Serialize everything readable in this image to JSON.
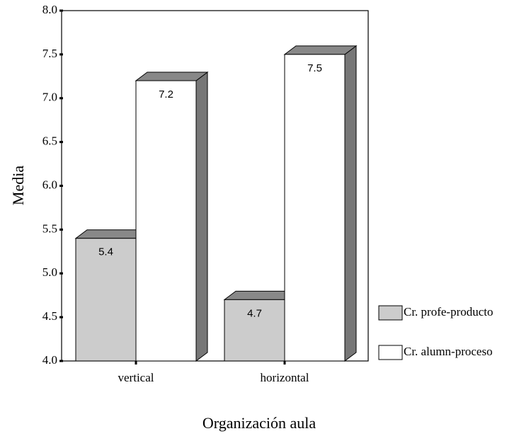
{
  "chart_data": {
    "type": "bar3d",
    "x_label": "Organización aula",
    "y_label": "Media",
    "categories": [
      "vertical",
      "horizontal"
    ],
    "series": [
      {
        "name": "Cr. profe-producto",
        "color": "#cccccc",
        "values": [
          5.4,
          4.7
        ]
      },
      {
        "name": "Cr. alumn-proceso",
        "color": "#ffffff",
        "values": [
          7.2,
          7.5
        ]
      }
    ],
    "ylim": [
      4,
      8
    ],
    "yticks": [
      {
        "value": 4,
        "label": "4.0"
      },
      4.5,
      {
        "value": 5,
        "label": "5.0"
      },
      5.5,
      {
        "value": 6,
        "label": "6.0"
      },
      6.5,
      {
        "value": 7,
        "label": "7.0"
      },
      7.5,
      {
        "value": 8,
        "label": "8.0"
      }
    ],
    "legend": "right"
  }
}
